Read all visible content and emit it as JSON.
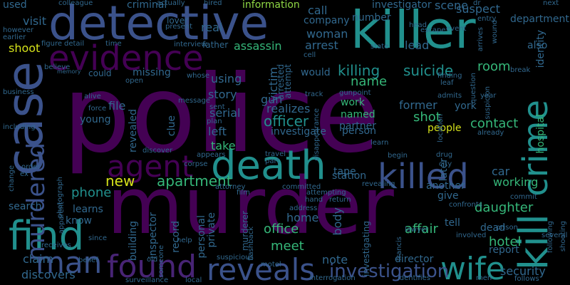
{
  "colors": {
    "background": "#000000",
    "purple": "#440154",
    "indigo": "#482475",
    "blue": "#3b528b",
    "steel": "#31688e",
    "teal": "#21908d",
    "green": "#35b779",
    "lime": "#8fd744",
    "yellow": "#d5e21a"
  },
  "words": [
    {
      "text": "police",
      "color": "purple"
    },
    {
      "text": "murder",
      "color": "purple"
    },
    {
      "text": "killer",
      "color": "teal"
    },
    {
      "text": "case",
      "color": "blue"
    },
    {
      "text": "detective",
      "color": "blue"
    },
    {
      "text": "death",
      "color": "teal"
    },
    {
      "text": "find",
      "color": "teal"
    },
    {
      "text": "evidence",
      "color": "purple"
    },
    {
      "text": "reveals",
      "color": "blue"
    },
    {
      "text": "found",
      "color": "indigo"
    },
    {
      "text": "kill",
      "color": "teal"
    },
    {
      "text": "crime",
      "color": "teal"
    },
    {
      "text": "killed",
      "color": "blue"
    },
    {
      "text": "agent",
      "color": "purple"
    },
    {
      "text": "man",
      "color": "blue"
    },
    {
      "text": "wife",
      "color": "teal"
    },
    {
      "text": "murdered",
      "color": "blue"
    },
    {
      "text": "investigation",
      "color": "blue"
    },
    {
      "text": "killing",
      "color": "teal"
    },
    {
      "text": "suicide",
      "color": "teal"
    },
    {
      "text": "new",
      "color": "yellow"
    },
    {
      "text": "apartment",
      "color": "green"
    },
    {
      "text": "phone",
      "color": "teal"
    },
    {
      "text": "officer",
      "color": "teal"
    },
    {
      "text": "office",
      "color": "green"
    },
    {
      "text": "meet",
      "color": "green"
    },
    {
      "text": "affair",
      "color": "green"
    },
    {
      "text": "daughter",
      "color": "green"
    },
    {
      "text": "hotel",
      "color": "green"
    },
    {
      "text": "room",
      "color": "green"
    },
    {
      "text": "name",
      "color": "green"
    },
    {
      "text": "shot",
      "color": "green"
    },
    {
      "text": "contact",
      "color": "green"
    },
    {
      "text": "people",
      "color": "yellow"
    },
    {
      "text": "security",
      "color": "steel"
    },
    {
      "text": "discovers",
      "color": "steel"
    },
    {
      "text": "story",
      "color": "steel"
    },
    {
      "text": "using",
      "color": "steel"
    },
    {
      "text": "serial",
      "color": "steel"
    },
    {
      "text": "realizes",
      "color": "steel"
    },
    {
      "text": "investigate",
      "color": "steel"
    },
    {
      "text": "left",
      "color": "steel"
    },
    {
      "text": "take",
      "color": "green"
    },
    {
      "text": "shoot",
      "color": "yellow"
    },
    {
      "text": "assassin",
      "color": "green"
    },
    {
      "text": "arrest",
      "color": "steel"
    },
    {
      "text": "lead",
      "color": "steel"
    },
    {
      "text": "suspect",
      "color": "steel"
    },
    {
      "text": "woman",
      "color": "steel"
    },
    {
      "text": "call",
      "color": "steel"
    },
    {
      "text": "information",
      "color": "lime"
    },
    {
      "text": "investigator",
      "color": "steel"
    },
    {
      "text": "scene",
      "color": "steel"
    },
    {
      "text": "number",
      "color": "steel"
    },
    {
      "text": "company",
      "color": "steel"
    },
    {
      "text": "department",
      "color": "steel"
    },
    {
      "text": "identity",
      "color": "steel"
    },
    {
      "text": "hospital",
      "color": "green"
    },
    {
      "text": "car",
      "color": "steel"
    },
    {
      "text": "working",
      "color": "green"
    },
    {
      "text": "note",
      "color": "steel"
    },
    {
      "text": "director",
      "color": "steel"
    },
    {
      "text": "report",
      "color": "steel"
    },
    {
      "text": "claim",
      "color": "steel"
    },
    {
      "text": "search",
      "color": "steel"
    },
    {
      "text": "learns",
      "color": "steel"
    },
    {
      "text": "know",
      "color": "steel"
    },
    {
      "text": "home",
      "color": "steel"
    },
    {
      "text": "body",
      "color": "steel"
    },
    {
      "text": "former",
      "color": "steel"
    },
    {
      "text": "partner",
      "color": "steel"
    },
    {
      "text": "person",
      "color": "steel"
    },
    {
      "text": "named",
      "color": "green"
    },
    {
      "text": "work",
      "color": "green"
    },
    {
      "text": "gun",
      "color": "steel"
    },
    {
      "text": "victim",
      "color": "steel"
    },
    {
      "text": "arrested",
      "color": "steel"
    },
    {
      "text": "attempt",
      "color": "steel"
    },
    {
      "text": "missing",
      "color": "steel"
    },
    {
      "text": "file",
      "color": "steel"
    },
    {
      "text": "young",
      "color": "steel"
    },
    {
      "text": "revealed",
      "color": "steel"
    },
    {
      "text": "clue",
      "color": "steel"
    },
    {
      "text": "private",
      "color": "steel"
    },
    {
      "text": "personal",
      "color": "steel"
    },
    {
      "text": "inspector",
      "color": "steel"
    },
    {
      "text": "building",
      "color": "steel"
    },
    {
      "text": "record",
      "color": "steel"
    },
    {
      "text": "murderer",
      "color": "steel"
    },
    {
      "text": "tell",
      "color": "steel"
    },
    {
      "text": "give",
      "color": "steel"
    },
    {
      "text": "another",
      "color": "steel"
    },
    {
      "text": "dead",
      "color": "steel"
    },
    {
      "text": "investigating",
      "color": "steel"
    },
    {
      "text": "station",
      "color": "steel"
    },
    {
      "text": "tape",
      "color": "steel"
    },
    {
      "text": "real",
      "color": "steel"
    },
    {
      "text": "visit",
      "color": "steel"
    },
    {
      "text": "used",
      "color": "steel"
    },
    {
      "text": "criminal",
      "color": "steel"
    },
    {
      "text": "colleague",
      "color": "steel"
    },
    {
      "text": "later",
      "color": "steel"
    },
    {
      "text": "york",
      "color": "steel"
    },
    {
      "text": "also",
      "color": "steel"
    },
    {
      "text": "would",
      "color": "steel"
    },
    {
      "text": "could",
      "color": "steel"
    },
    {
      "text": "lover",
      "color": "steel"
    },
    {
      "text": "present",
      "color": "steel"
    },
    {
      "text": "father",
      "color": "steel"
    },
    {
      "text": "interview",
      "color": "steel"
    },
    {
      "text": "detail",
      "color": "steel"
    },
    {
      "text": "figure",
      "color": "steel"
    },
    {
      "text": "time",
      "color": "steel"
    },
    {
      "text": "however",
      "color": "steel"
    },
    {
      "text": "earlier",
      "color": "steel"
    },
    {
      "text": "believe",
      "color": "steel"
    },
    {
      "text": "memory",
      "color": "steel"
    },
    {
      "text": "open",
      "color": "steel"
    },
    {
      "text": "alive",
      "color": "steel"
    },
    {
      "text": "force",
      "color": "steel"
    },
    {
      "text": "drug",
      "color": "steel"
    },
    {
      "text": "order",
      "color": "steel"
    },
    {
      "text": "ex",
      "color": "steel"
    },
    {
      "text": "change",
      "color": "steel"
    },
    {
      "text": "photograph",
      "color": "steel"
    },
    {
      "text": "apparent",
      "color": "steel"
    },
    {
      "text": "receives",
      "color": "steel"
    },
    {
      "text": "since",
      "color": "steel"
    },
    {
      "text": "belief",
      "color": "steel"
    },
    {
      "text": "old",
      "color": "steel"
    },
    {
      "text": "surveillance",
      "color": "steel"
    },
    {
      "text": "local",
      "color": "steel"
    },
    {
      "text": "suspicious",
      "color": "steel"
    },
    {
      "text": "motel",
      "color": "steel"
    },
    {
      "text": "interrogation",
      "color": "steel"
    },
    {
      "text": "identifies",
      "color": "steel"
    },
    {
      "text": "men",
      "color": "steel"
    },
    {
      "text": "follows",
      "color": "steel"
    },
    {
      "text": "following",
      "color": "steel"
    },
    {
      "text": "shooting",
      "color": "steel"
    },
    {
      "text": "several",
      "color": "steel"
    },
    {
      "text": "prison",
      "color": "steel"
    },
    {
      "text": "involved",
      "color": "steel"
    },
    {
      "text": "commit",
      "color": "steel"
    },
    {
      "text": "confronts",
      "color": "steel"
    },
    {
      "text": "city",
      "color": "steel"
    },
    {
      "text": "begin",
      "color": "steel"
    },
    {
      "text": "lawyer",
      "color": "steel"
    },
    {
      "text": "revealing",
      "color": "steel"
    },
    {
      "text": "attempting",
      "color": "steel"
    },
    {
      "text": "return",
      "color": "steel"
    },
    {
      "text": "committed",
      "color": "steel"
    },
    {
      "text": "attorney",
      "color": "steel"
    },
    {
      "text": "film",
      "color": "steel"
    },
    {
      "text": "address",
      "color": "steel"
    },
    {
      "text": "flashback",
      "color": "steel"
    },
    {
      "text": "hand",
      "color": "steel"
    },
    {
      "text": "help",
      "color": "steel"
    },
    {
      "text": "someone",
      "color": "steel"
    },
    {
      "text": "corpse",
      "color": "steel"
    },
    {
      "text": "appears",
      "color": "steel"
    },
    {
      "text": "discover",
      "color": "steel"
    },
    {
      "text": "including",
      "color": "steel"
    },
    {
      "text": "business",
      "color": "steel"
    },
    {
      "text": "message",
      "color": "steel"
    },
    {
      "text": "sent",
      "color": "steel"
    },
    {
      "text": "plan",
      "color": "steel"
    },
    {
      "text": "whose",
      "color": "steel"
    },
    {
      "text": "disappearance",
      "color": "steel"
    },
    {
      "text": "gunpoint",
      "color": "steel"
    },
    {
      "text": "track",
      "color": "steel"
    },
    {
      "text": "leaf",
      "color": "steel"
    },
    {
      "text": "finding",
      "color": "steel"
    },
    {
      "text": "admits",
      "color": "steel"
    },
    {
      "text": "location",
      "color": "steel"
    },
    {
      "text": "question",
      "color": "steel"
    },
    {
      "text": "suspicion",
      "color": "steel"
    },
    {
      "text": "year",
      "color": "steel"
    },
    {
      "text": "already",
      "color": "steel"
    },
    {
      "text": "wound",
      "color": "steel"
    },
    {
      "text": "next",
      "color": "steel"
    },
    {
      "text": "entry",
      "color": "steel"
    },
    {
      "text": "arrives",
      "color": "steel"
    },
    {
      "text": "event",
      "color": "steel"
    },
    {
      "text": "escape",
      "color": "steel"
    },
    {
      "text": "head",
      "color": "steel"
    },
    {
      "text": "state",
      "color": "steel"
    },
    {
      "text": "cell",
      "color": "steel"
    },
    {
      "text": "break",
      "color": "steel"
    },
    {
      "text": "travel",
      "color": "steel"
    },
    {
      "text": "part",
      "color": "steel"
    },
    {
      "text": "learn",
      "color": "steel"
    },
    {
      "text": "francis",
      "color": "steel"
    },
    {
      "text": "actually",
      "color": "steel"
    },
    {
      "text": "hired",
      "color": "steel"
    },
    {
      "text": "dr",
      "color": "steel"
    }
  ]
}
